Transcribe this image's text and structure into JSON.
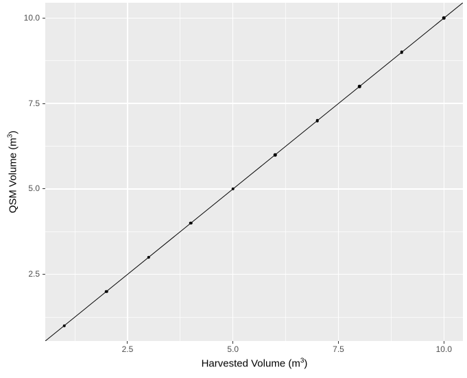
{
  "chart_data": {
    "type": "scatter",
    "title": "",
    "xlabel": "Harvested Volume (m³)",
    "ylabel": "QSM Volume (m³)",
    "x": [
      1,
      2,
      3,
      4,
      5,
      6,
      7,
      8,
      9,
      10
    ],
    "y": [
      1,
      2,
      3,
      4,
      5,
      6,
      7,
      8,
      9,
      10
    ],
    "line": {
      "type": "abline",
      "slope": 1,
      "intercept": 0
    },
    "xlim": [
      0.55,
      10.45
    ],
    "ylim": [
      0.55,
      10.45
    ],
    "x_major_ticks": [
      2.5,
      5.0,
      7.5,
      10.0
    ],
    "x_tick_labels": [
      "2.5",
      "5.0",
      "7.5",
      "10.0"
    ],
    "y_major_ticks": [
      2.5,
      5.0,
      7.5,
      10.0
    ],
    "y_tick_labels": [
      "2.5",
      "5.0",
      "7.5",
      "10.0"
    ],
    "x_minor_ticks": [
      1.25,
      3.75,
      6.25,
      8.75
    ],
    "y_minor_ticks": [
      1.25,
      3.75,
      6.25,
      8.75
    ],
    "grid": true,
    "legend_position": "none",
    "theme": "ggplot2-grey"
  },
  "axis_titles": {
    "x_prefix": "Harvested Volume (m",
    "x_sup": "3",
    "x_suffix": ")",
    "y_prefix": "QSM Volume (m",
    "y_sup": "3",
    "y_suffix": ")"
  },
  "colors": {
    "figure_background": "#FFFFFF",
    "panel_background": "#EBEBEB",
    "grid_major": "#FFFFFF",
    "grid_minor": "#FFFFFF",
    "tick_mark": "#333333",
    "tick_label": "#4D4D4D",
    "axis_title": "#000000",
    "point": "#000000",
    "line": "#000000"
  }
}
